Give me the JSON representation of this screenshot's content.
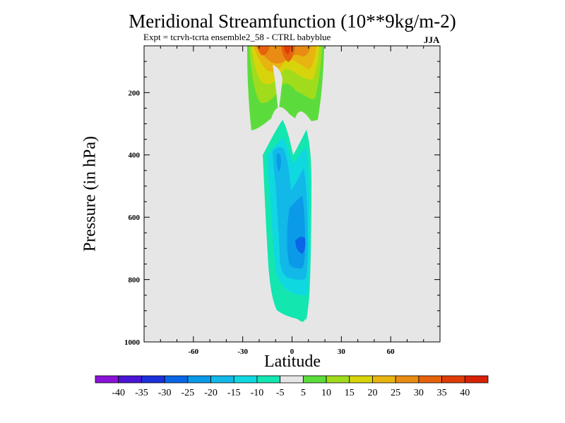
{
  "chart_data": {
    "type": "contour",
    "title": "Meridional Streamfunction (10**9kg/m-2)",
    "subtitle": "Expt = tcrvh-tcrta  ensemble2_58 - CTRL babyblue",
    "season": "JJA",
    "xlabel": "Latitude",
    "ylabel": "Pressure (in hPa)",
    "xlim": [
      -90,
      90
    ],
    "ylim": [
      1000,
      50
    ],
    "y_axis_inverted": true,
    "xticks": [
      -60,
      -30,
      0,
      30,
      60
    ],
    "yticks": [
      200,
      400,
      600,
      800,
      1000
    ],
    "background": "#e6e6e6",
    "colorbar": {
      "labels": [
        "-40",
        "-35",
        "-30",
        "-25",
        "-20",
        "-15",
        "-10",
        "-5",
        "5",
        "10",
        "15",
        "20",
        "25",
        "30",
        "35",
        "40"
      ],
      "colors": [
        "#8a12d8",
        "#4a14d4",
        "#1c30dc",
        "#0a66e6",
        "#0a9ae8",
        "#12b8e8",
        "#10d8e0",
        "#14e6b0",
        "#e6e6e6",
        "#5cdc3c",
        "#a0dc1c",
        "#d8d40c",
        "#e8b410",
        "#e88c14",
        "#e6620c",
        "#e03c08",
        "#d82206"
      ]
    },
    "contours": {
      "positive_upper_cell": {
        "lat_range": [
          -27,
          20
        ],
        "pressure_range": [
          50,
          280
        ],
        "max_value": 35
      },
      "negative_lower_cell": {
        "lat_range": [
          -17,
          12
        ],
        "pressure_range": [
          280,
          925
        ],
        "min_value": -25
      }
    }
  }
}
